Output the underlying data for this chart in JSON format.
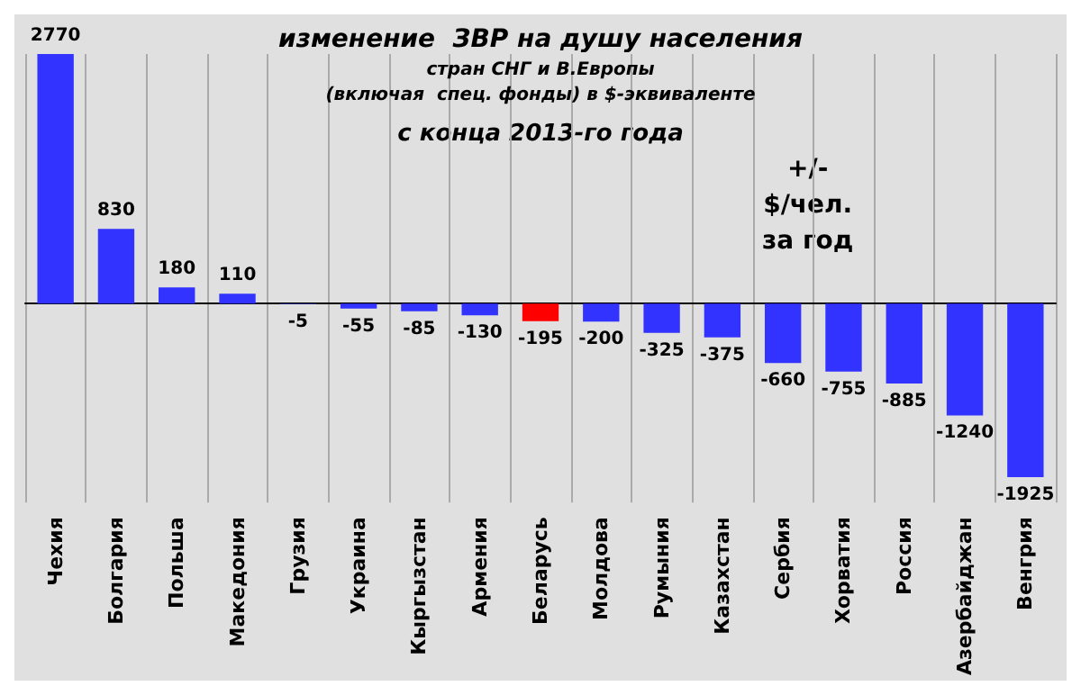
{
  "chart_data": {
    "type": "bar",
    "title": "изменение  ЗВР на душу населения",
    "subtitle": "стран СНГ и В.Европы\n(включая  спец. фонды) в $-эквиваленте",
    "annotations": [
      "с конца 2013-го года",
      "+/-\n$/чел.\nза год"
    ],
    "categories": [
      "Чехия",
      "Болгария",
      "Польша",
      "Македония",
      "Грузия",
      "Украина",
      "Кыргызстан",
      "Армения",
      "Беларусь",
      "Молдова",
      "Румыния",
      "Казахстан",
      "Сербия",
      "Хорватия",
      "Россия",
      "Азербайджан",
      "Венгрия"
    ],
    "values": [
      2770,
      830,
      180,
      110,
      -5,
      -55,
      -85,
      -130,
      -195,
      -200,
      -325,
      -375,
      -660,
      -755,
      -885,
      -1240,
      -1925
    ],
    "colors": [
      "#3333ff",
      "#3333ff",
      "#3333ff",
      "#3333ff",
      "#3333ff",
      "#3333ff",
      "#3333ff",
      "#3333ff",
      "#ff0000",
      "#3333ff",
      "#3333ff",
      "#3333ff",
      "#3333ff",
      "#3333ff",
      "#3333ff",
      "#3333ff",
      "#3333ff"
    ],
    "data_labels": true,
    "grid": "x",
    "tick_labels": "x"
  }
}
